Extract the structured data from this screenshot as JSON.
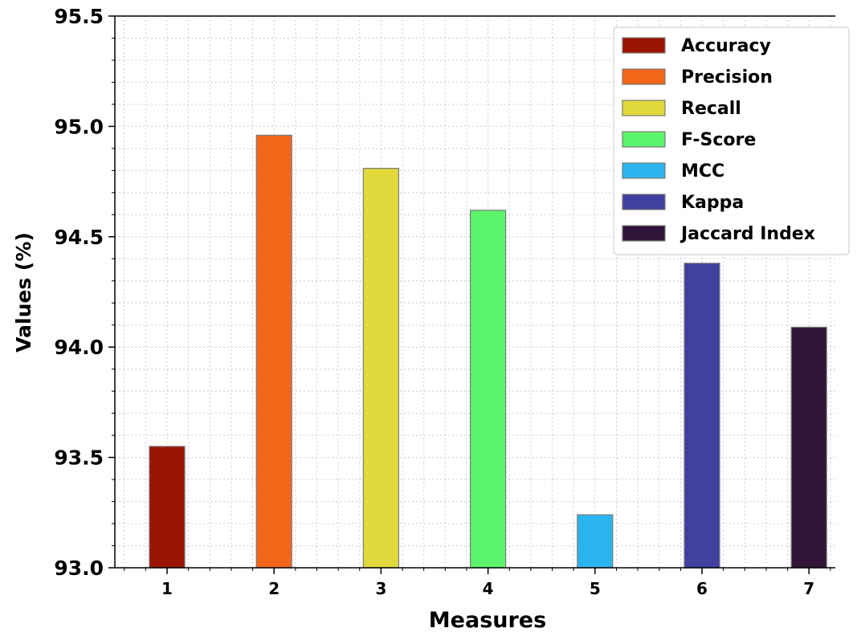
{
  "chart_data": {
    "type": "bar",
    "categories": [
      "1",
      "2",
      "3",
      "4",
      "5",
      "6",
      "7"
    ],
    "series": [
      {
        "name": "Accuracy",
        "category": "1",
        "value": 93.55,
        "color": "#9b1302"
      },
      {
        "name": "Precision",
        "category": "2",
        "value": 94.96,
        "color": "#f2661a"
      },
      {
        "name": "Recall",
        "category": "3",
        "value": 94.81,
        "color": "#e1d93c"
      },
      {
        "name": "F-Score",
        "category": "4",
        "value": 94.62,
        "color": "#5cf46c"
      },
      {
        "name": "MCC",
        "category": "5",
        "value": 93.24,
        "color": "#2ab5ee"
      },
      {
        "name": "Kappa",
        "category": "6",
        "value": 94.38,
        "color": "#4040a1"
      },
      {
        "name": "Jaccard Index",
        "category": "7",
        "value": 94.09,
        "color": "#311538"
      }
    ],
    "xlabel": "Measures",
    "ylabel": "Values (%)",
    "ylim": [
      93.0,
      95.5
    ],
    "yticks": [
      "93.0",
      "93.5",
      "94.0",
      "94.5",
      "95.0",
      "95.5"
    ],
    "grid": true,
    "legend_position": "top-right"
  }
}
